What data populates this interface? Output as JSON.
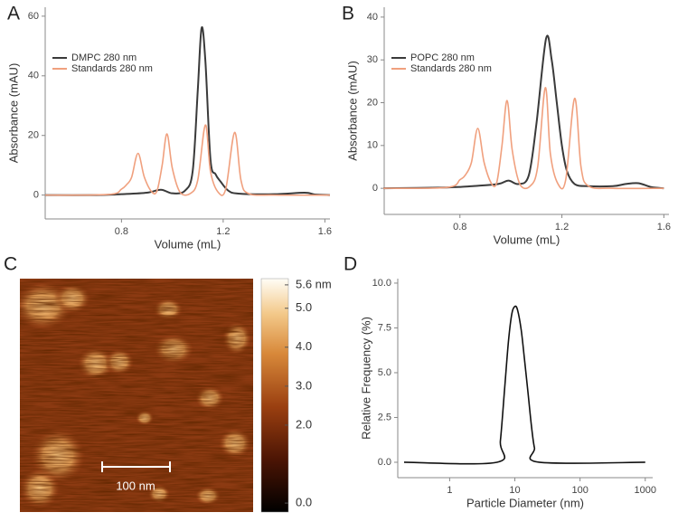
{
  "chart_data": [
    {
      "type": "line",
      "label": "A",
      "xlabel": "Volume (mL)",
      "ylabel": "Absorbance (mAU)",
      "xlim": [
        0.5,
        1.62
      ],
      "xticks": [
        0.8,
        1.2,
        1.6
      ],
      "ylim": [
        -8,
        63
      ],
      "yticks": [
        0,
        20,
        40,
        60
      ],
      "legend": "upper left",
      "series": [
        {
          "name": "DMPC 280 nm",
          "color": "#3a3a3a",
          "x": [
            0.5,
            0.7,
            0.8,
            0.9,
            0.955,
            1.0,
            1.05,
            1.08,
            1.1,
            1.115,
            1.13,
            1.15,
            1.17,
            1.19,
            1.22,
            1.26,
            1.4,
            1.52,
            1.56,
            1.62
          ],
          "values": [
            0,
            0,
            0.3,
            0.8,
            1.8,
            0.6,
            1.5,
            8,
            35,
            56,
            45,
            12,
            7,
            4.5,
            1.5,
            0.5,
            0.3,
            0.8,
            0.2,
            0
          ]
        },
        {
          "name": "Standards 280 nm",
          "color": "#f0a07e",
          "x": [
            0.5,
            0.75,
            0.8,
            0.82,
            0.84,
            0.865,
            0.89,
            0.92,
            0.94,
            0.96,
            0.979,
            1.0,
            1.03,
            1.07,
            1.1,
            1.13,
            1.15,
            1.18,
            1.21,
            1.245,
            1.27,
            1.3,
            1.4,
            1.62
          ],
          "values": [
            0,
            0.2,
            2,
            3.5,
            6,
            14,
            6,
            1,
            1.5,
            10,
            20.5,
            9,
            1,
            0.5,
            5,
            23.5,
            8,
            1,
            2,
            21,
            5,
            0.5,
            0,
            0
          ]
        }
      ]
    },
    {
      "type": "line",
      "label": "B",
      "xlabel": "Volume (mL)",
      "ylabel": "Absorbance (mAU)",
      "xlim": [
        0.503,
        1.62
      ],
      "xticks": [
        0.8,
        1.2,
        1.6
      ],
      "ylim": [
        -6.1,
        42.3
      ],
      "yticks": [
        0,
        10,
        20,
        30,
        40
      ],
      "legend": "upper left",
      "series": [
        {
          "name": "POPC 280 nm",
          "color": "#3a3a3a",
          "x": [
            0.5,
            0.75,
            0.85,
            0.95,
            0.99,
            1.03,
            1.07,
            1.1,
            1.138,
            1.16,
            1.18,
            1.2,
            1.22,
            1.25,
            1.3,
            1.4,
            1.45,
            1.5,
            1.55,
            1.6
          ],
          "values": [
            0,
            0.2,
            0.5,
            1,
            1.8,
            1,
            3,
            15,
            35,
            30,
            20,
            10,
            4,
            1,
            0.5,
            0.5,
            1,
            1.2,
            0.3,
            0
          ]
        },
        {
          "name": "Standards 280 nm",
          "color": "#f0a07e",
          "x": [
            0.5,
            0.75,
            0.8,
            0.82,
            0.845,
            0.87,
            0.895,
            0.925,
            0.945,
            0.965,
            0.985,
            1.005,
            1.035,
            1.075,
            1.105,
            1.135,
            1.155,
            1.185,
            1.215,
            1.25,
            1.275,
            1.305,
            1.4,
            1.6
          ],
          "values": [
            0,
            0.2,
            2,
            3,
            6,
            14,
            6,
            1,
            1.5,
            10,
            20.5,
            9,
            1,
            0.5,
            5,
            23.5,
            8,
            1,
            2,
            21,
            5,
            0.5,
            0,
            0
          ]
        }
      ]
    },
    {
      "type": "image",
      "label": "C",
      "scale_bar": "100 nm",
      "clim": [
        -0.23,
        5.76
      ],
      "cticks": [
        {
          "value": 0,
          "label": "0.0"
        },
        {
          "value": 2,
          "label": "2.0"
        },
        {
          "value": 3,
          "label": "3.0"
        },
        {
          "value": 4,
          "label": "4.0"
        },
        {
          "value": 5,
          "label": "5.0"
        },
        {
          "value": 5.6,
          "label": "5.6 nm"
        }
      ]
    },
    {
      "type": "line",
      "label": "D",
      "xlabel": "Particle Diameter (nm)",
      "ylabel": "Relative Frequency (%)",
      "log_x": true,
      "xlim": [
        0.16,
        1300
      ],
      "xticks": [
        1,
        10,
        100,
        1000
      ],
      "ylim": [
        -0.86,
        10.25
      ],
      "yticks": [
        {
          "value": 0,
          "label": "0.0"
        },
        {
          "value": 2.5,
          "label": "2.5"
        },
        {
          "value": 5,
          "label": "5.0"
        },
        {
          "value": 7.5,
          "label": "7.5"
        },
        {
          "value": 10,
          "label": "10.0"
        }
      ],
      "series": [
        {
          "color": "#111111",
          "x": [
            0.2,
            5.3,
            6,
            7,
            8,
            9,
            10,
            11,
            12.5,
            14,
            16,
            18,
            20,
            23.7,
            1000
          ],
          "values": [
            0,
            0,
            1.2,
            4.2,
            6.8,
            8.3,
            8.7,
            8.5,
            7.4,
            5.8,
            3.8,
            2.0,
            0.8,
            0,
            0
          ]
        }
      ]
    }
  ]
}
